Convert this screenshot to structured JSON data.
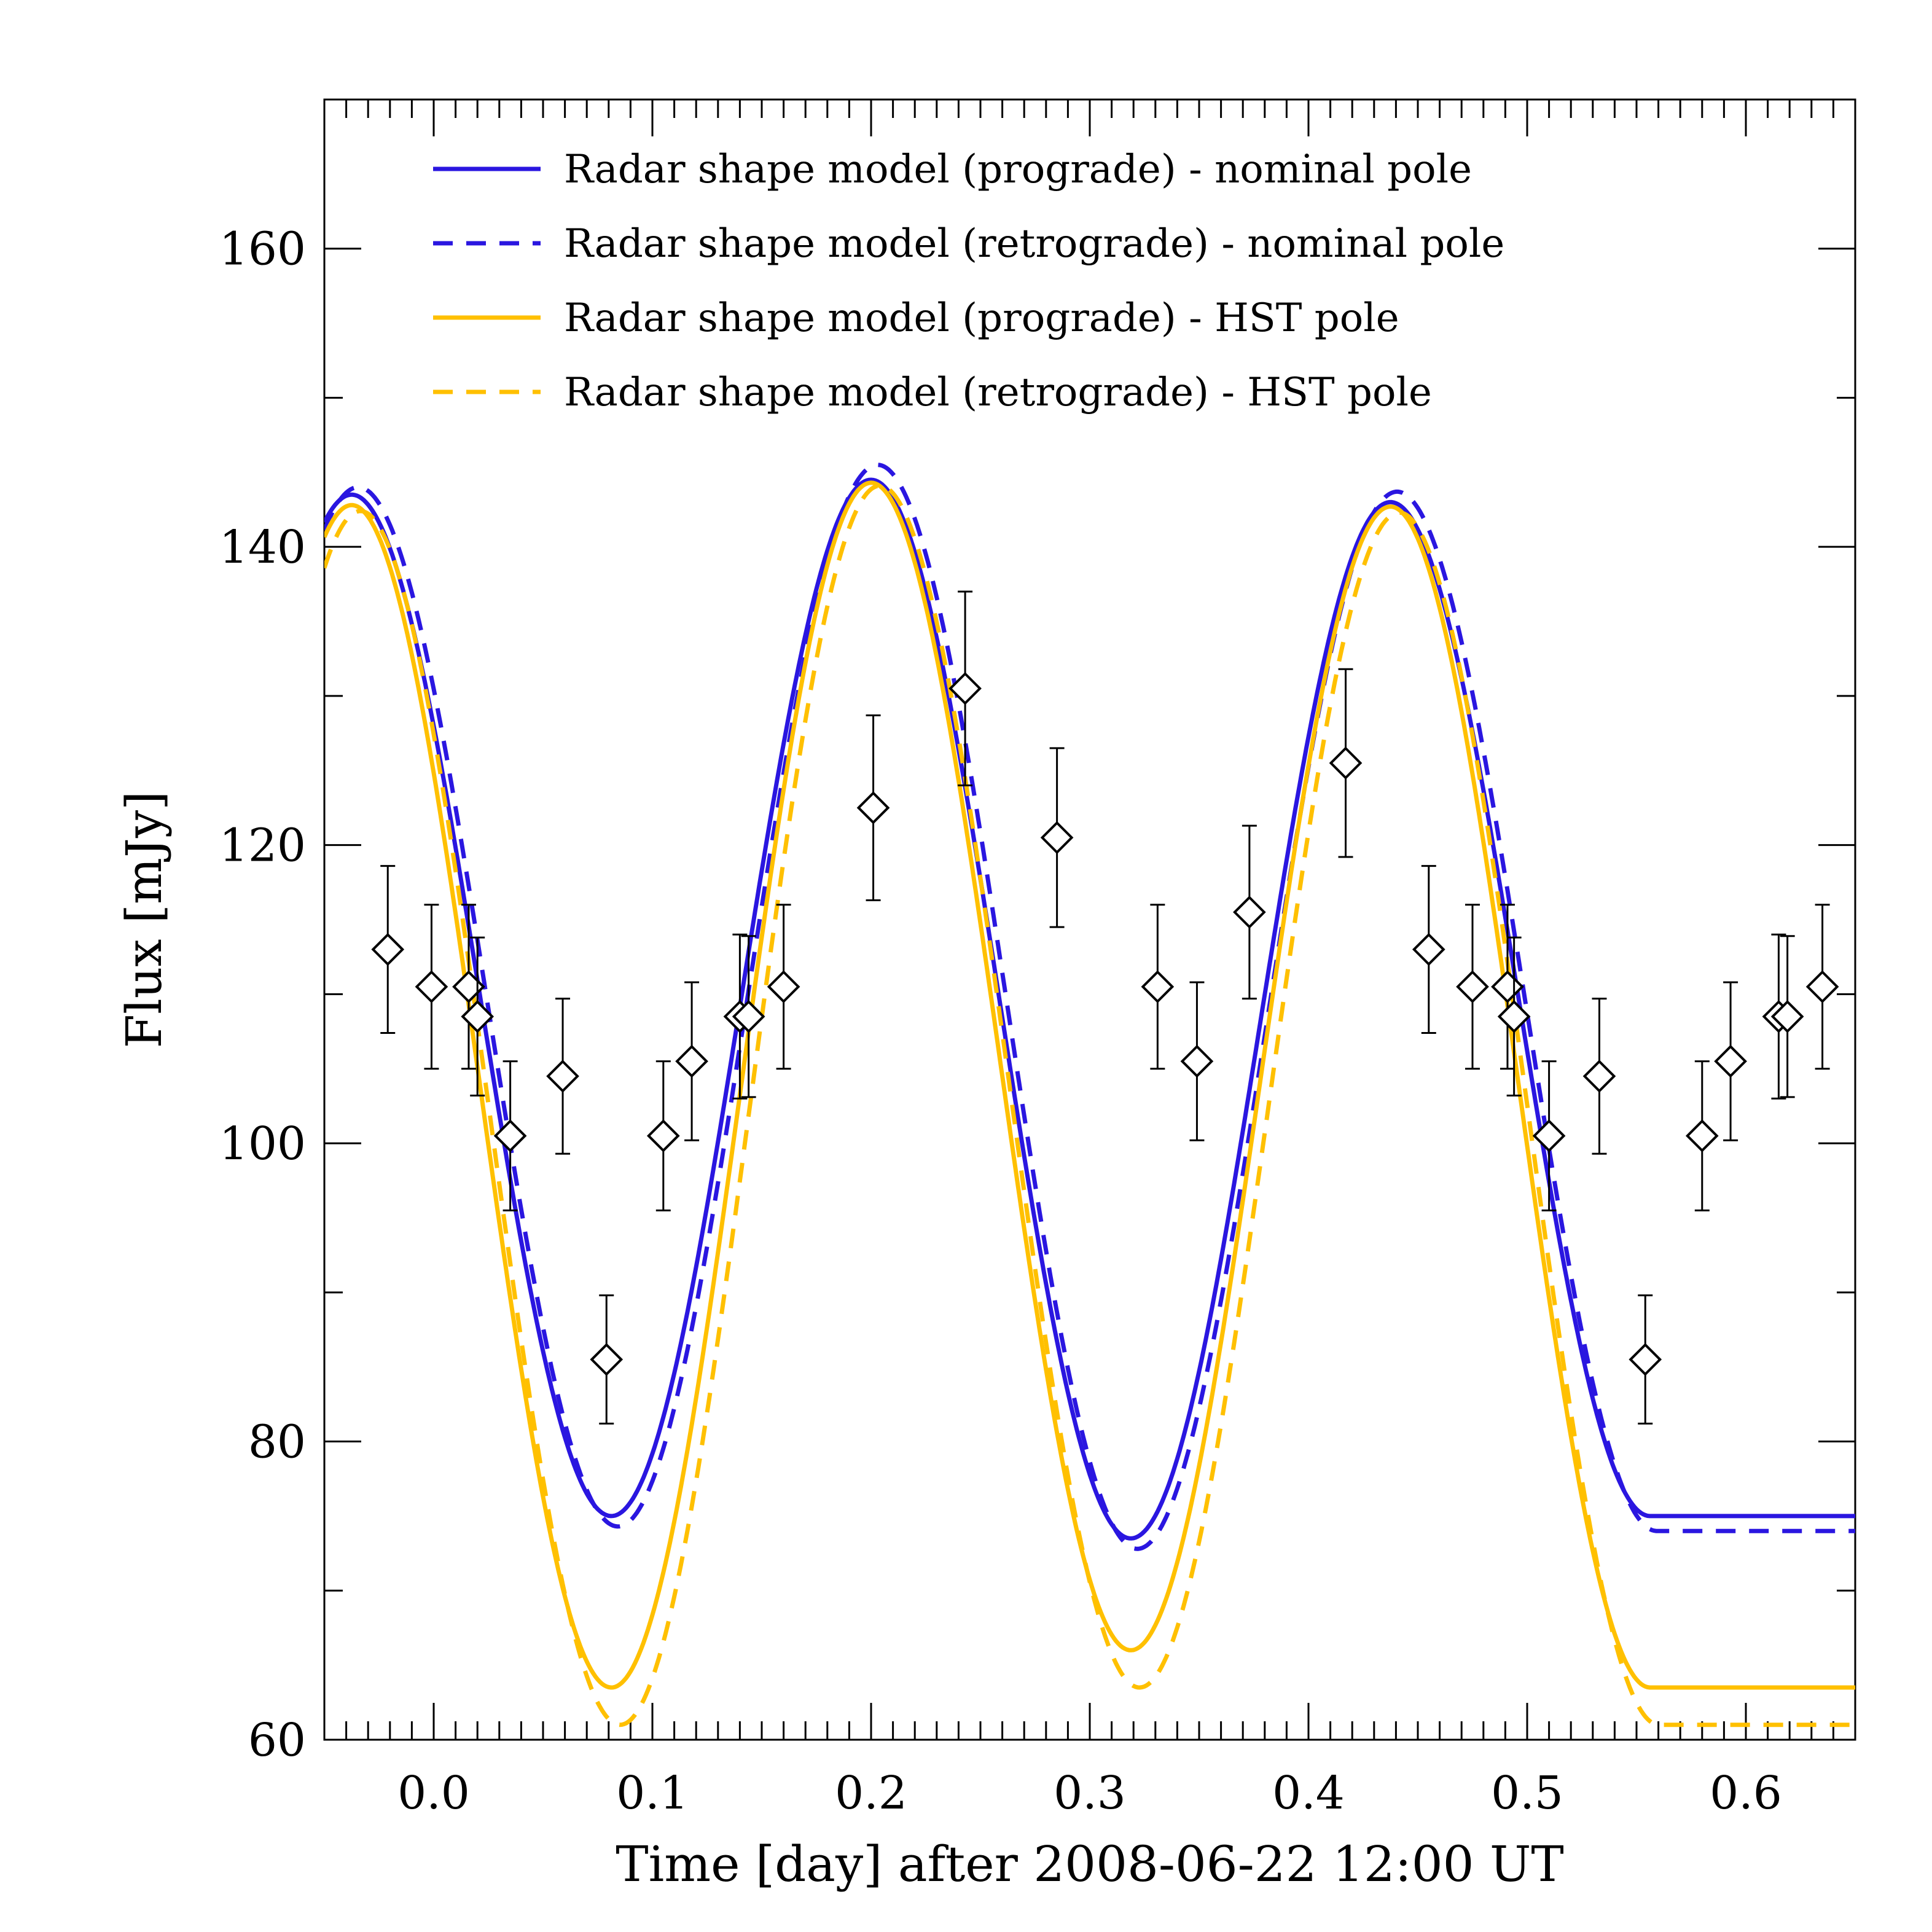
{
  "chart_data": {
    "type": "line",
    "title": "",
    "xlabel": "Time [day] after 2008-06-22 12:00 UT",
    "ylabel": "Flux [mJy]",
    "xlim": [
      -0.05,
      0.65
    ],
    "ylim": [
      60,
      170
    ],
    "x_ticks": [
      "0.0",
      "0.1",
      "0.2",
      "0.3",
      "0.4",
      "0.5",
      "0.6"
    ],
    "y_ticks": [
      "60",
      "80",
      "100",
      "120",
      "140",
      "160"
    ],
    "legend_position": "top",
    "series": [
      {
        "name": "Radar shape model (prograde) - nominal pole",
        "color": "#2a16e0",
        "style": "solid",
        "period": 0.2375,
        "t_max": 0.2,
        "maxima": [
          143.5,
          144.5,
          143.0
        ],
        "minima": [
          75.0,
          73.5,
          75.0
        ]
      },
      {
        "name": "Radar shape model (retrograde) - nominal pole",
        "color": "#2a16e0",
        "style": "dashed",
        "period": 0.2375,
        "t_max": 0.203,
        "maxima": [
          144.0,
          145.5,
          143.7
        ],
        "minima": [
          74.3,
          72.8,
          74.0
        ]
      },
      {
        "name": "Radar shape model (prograde) - HST pole",
        "color": "#ffc000",
        "style": "solid",
        "period": 0.2375,
        "t_max": 0.2,
        "maxima": [
          142.8,
          144.3,
          142.7
        ],
        "minima": [
          63.5,
          66.0,
          63.5
        ]
      },
      {
        "name": "Radar shape model (retrograde) - HST pole",
        "color": "#ffc000",
        "style": "dashed",
        "period": 0.2375,
        "t_max": 0.204,
        "maxima": [
          142.4,
          144.1,
          142.3
        ],
        "minima": [
          61.0,
          63.5,
          61.0
        ]
      }
    ],
    "observations": {
      "name": "measurements",
      "marker": "diamond",
      "x": [
        -0.021,
        -0.001,
        0.016,
        0.02,
        0.035,
        0.059,
        0.079,
        0.105,
        0.118,
        0.14,
        0.144,
        0.16,
        0.201,
        0.243,
        0.285,
        0.331,
        0.349,
        0.373,
        0.417,
        0.455,
        0.475,
        0.491,
        0.494,
        0.51,
        0.533,
        0.554,
        0.58,
        0.593,
        0.615,
        0.619,
        0.635
      ],
      "y": [
        113.0,
        110.5,
        110.5,
        108.5,
        100.5,
        104.5,
        85.5,
        100.5,
        105.5,
        108.5,
        108.5,
        110.5,
        122.5,
        130.5,
        120.5,
        110.5,
        105.5,
        115.5,
        125.5,
        113.0,
        110.5,
        110.5,
        108.5,
        100.5,
        104.5,
        85.5,
        100.5,
        105.5,
        108.5,
        108.5,
        110.5
      ],
      "yerr": [
        5.6,
        5.5,
        5.5,
        5.3,
        5.0,
        5.2,
        4.3,
        5.0,
        5.3,
        5.5,
        5.4,
        5.5,
        6.2,
        6.5,
        6.0,
        5.5,
        5.3,
        5.8,
        6.3,
        5.6,
        5.5,
        5.5,
        5.3,
        5.0,
        5.2,
        4.3,
        5.0,
        5.3,
        5.5,
        5.4,
        5.5
      ],
      "color": "#000000"
    }
  }
}
